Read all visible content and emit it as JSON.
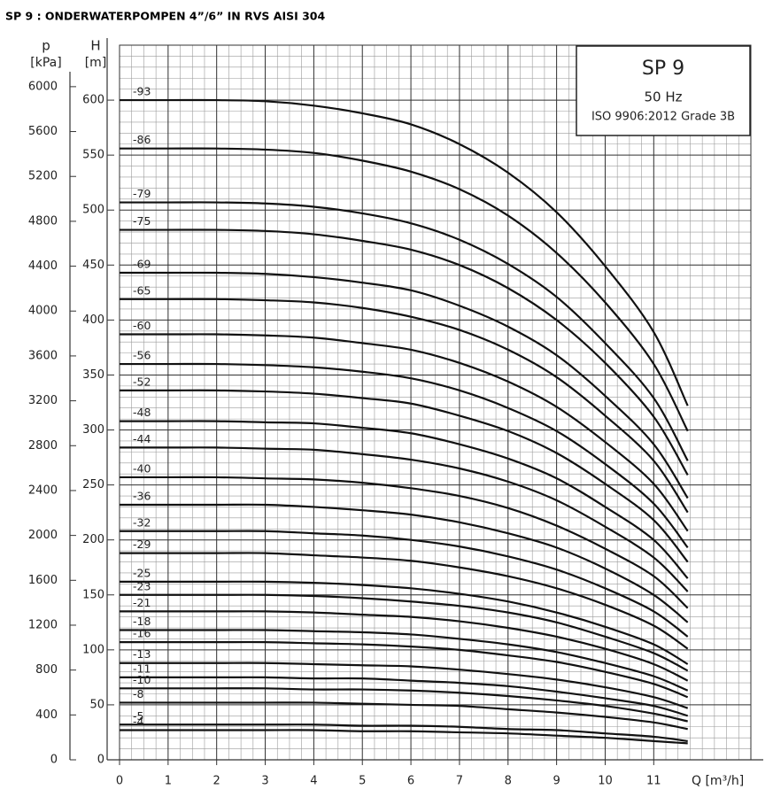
{
  "chart_data": {
    "type": "line",
    "title": "SP 9 : ONDERWATERPOMPEN 4”/6” IN RVS AISI 304",
    "annotations": [
      "SP 9",
      "50 Hz",
      "ISO 9906:2012 Grade 3B"
    ],
    "x_label": "Q [m³/h]",
    "y_label": "H",
    "y_unit": "[m]",
    "y2_label": "p",
    "y2_unit": "[kPa]",
    "x": [
      0,
      1,
      2,
      3,
      4,
      5,
      6,
      7,
      8,
      9,
      10,
      11,
      11.7
    ],
    "series": [
      {
        "name": "-93",
        "color": "#111111",
        "values": [
          600,
          600,
          600,
          599,
          595,
          588,
          578,
          560,
          534,
          498,
          449,
          389,
          322
        ]
      },
      {
        "name": "-86",
        "color": "#111111",
        "values": [
          556,
          556,
          556,
          555,
          552,
          545,
          535,
          519,
          495,
          461,
          416,
          360,
          299
        ]
      },
      {
        "name": "-79",
        "color": "#111111",
        "values": [
          507,
          507,
          507,
          506,
          503,
          497,
          488,
          473,
          451,
          421,
          379,
          329,
          272
        ]
      },
      {
        "name": "-75",
        "color": "#111111",
        "values": [
          482,
          482,
          482,
          481,
          478,
          472,
          464,
          450,
          429,
          400,
          361,
          312,
          259
        ]
      },
      {
        "name": "-69",
        "color": "#111111",
        "values": [
          443,
          443,
          443,
          442,
          439,
          434,
          427,
          413,
          394,
          368,
          331,
          287,
          238
        ]
      },
      {
        "name": "-65",
        "color": "#111111",
        "values": [
          419,
          419,
          419,
          418,
          416,
          411,
          403,
          391,
          373,
          348,
          313,
          272,
          225
        ]
      },
      {
        "name": "-60",
        "color": "#111111",
        "values": [
          387,
          387,
          387,
          386,
          384,
          379,
          373,
          361,
          344,
          321,
          289,
          251,
          208
        ]
      },
      {
        "name": "-56",
        "color": "#111111",
        "values": [
          360,
          360,
          360,
          359,
          357,
          353,
          347,
          336,
          320,
          299,
          269,
          233,
          193
        ]
      },
      {
        "name": "-52",
        "color": "#111111",
        "values": [
          336,
          336,
          336,
          335,
          333,
          329,
          324,
          313,
          299,
          279,
          251,
          218,
          180
        ]
      },
      {
        "name": "-48",
        "color": "#111111",
        "values": [
          308,
          308,
          308,
          307,
          306,
          302,
          297,
          287,
          274,
          256,
          230,
          200,
          165
        ]
      },
      {
        "name": "-44",
        "color": "#111111",
        "values": [
          284,
          284,
          284,
          283,
          282,
          278,
          273,
          265,
          253,
          236,
          212,
          184,
          153
        ]
      },
      {
        "name": "-40",
        "color": "#111111",
        "values": [
          257,
          257,
          257,
          256,
          255,
          252,
          247,
          240,
          229,
          213,
          192,
          167,
          138
        ]
      },
      {
        "name": "-36",
        "color": "#111111",
        "values": [
          232,
          232,
          232,
          232,
          230,
          227,
          223,
          216,
          206,
          193,
          174,
          150,
          125
        ]
      },
      {
        "name": "-32",
        "color": "#111111",
        "values": [
          208,
          208,
          208,
          208,
          206,
          204,
          200,
          194,
          185,
          173,
          156,
          135,
          112
        ]
      },
      {
        "name": "-29",
        "color": "#111111",
        "values": [
          188,
          188,
          188,
          188,
          186,
          184,
          181,
          175,
          167,
          156,
          141,
          122,
          101
        ]
      },
      {
        "name": "-25",
        "color": "#111111",
        "values": [
          162,
          162,
          162,
          162,
          161,
          159,
          156,
          151,
          144,
          134,
          121,
          105,
          87
        ]
      },
      {
        "name": "-23",
        "color": "#111111",
        "values": [
          150,
          150,
          150,
          150,
          149,
          147,
          144,
          140,
          134,
          125,
          112,
          97,
          81
        ]
      },
      {
        "name": "-21",
        "color": "#111111",
        "values": [
          135,
          135,
          135,
          135,
          134,
          132,
          130,
          126,
          120,
          112,
          101,
          87,
          72
        ]
      },
      {
        "name": "-18",
        "color": "#111111",
        "values": [
          118,
          118,
          118,
          118,
          117,
          116,
          114,
          110,
          105,
          98,
          88,
          76,
          63
        ]
      },
      {
        "name": "-16",
        "color": "#111111",
        "values": [
          107,
          107,
          107,
          107,
          106,
          105,
          103,
          100,
          95,
          89,
          80,
          69,
          57
        ]
      },
      {
        "name": "-13",
        "color": "#111111",
        "values": [
          88,
          88,
          88,
          88,
          87,
          86,
          85,
          82,
          78,
          73,
          66,
          57,
          47
        ]
      },
      {
        "name": "-11",
        "color": "#111111",
        "values": [
          75,
          75,
          75,
          75,
          74,
          74,
          72,
          70,
          67,
          62,
          56,
          49,
          40
        ]
      },
      {
        "name": "-10",
        "color": "#111111",
        "values": [
          65,
          65,
          65,
          65,
          64,
          64,
          63,
          61,
          58,
          54,
          49,
          42,
          35
        ]
      },
      {
        "name": "-8",
        "color": "#111111",
        "values": [
          52,
          52,
          52,
          52,
          52,
          51,
          50,
          49,
          46,
          43,
          39,
          34,
          28
        ]
      },
      {
        "name": "-5",
        "color": "#111111",
        "values": [
          32,
          32,
          32,
          32,
          32,
          31,
          31,
          30,
          28,
          27,
          24,
          21,
          17
        ]
      },
      {
        "name": "-4",
        "color": "#111111",
        "values": [
          27,
          27,
          27,
          27,
          27,
          26,
          26,
          25,
          24,
          22,
          20,
          17,
          15
        ]
      }
    ],
    "xlim": [
      0,
      13
    ],
    "xticks": [
      0,
      1,
      2,
      3,
      4,
      5,
      6,
      7,
      8,
      9,
      10,
      11
    ],
    "ylim": [
      0,
      650
    ],
    "yticks": [
      0,
      50,
      100,
      150,
      200,
      250,
      300,
      350,
      400,
      450,
      500,
      550,
      600
    ],
    "y2lim": [
      0,
      6370
    ],
    "y2ticks": [
      0,
      400,
      800,
      1200,
      1600,
      2000,
      2400,
      2800,
      3200,
      3600,
      4000,
      4400,
      4800,
      5200,
      5600,
      6000
    ],
    "grid": true,
    "minor_grid": true
  }
}
